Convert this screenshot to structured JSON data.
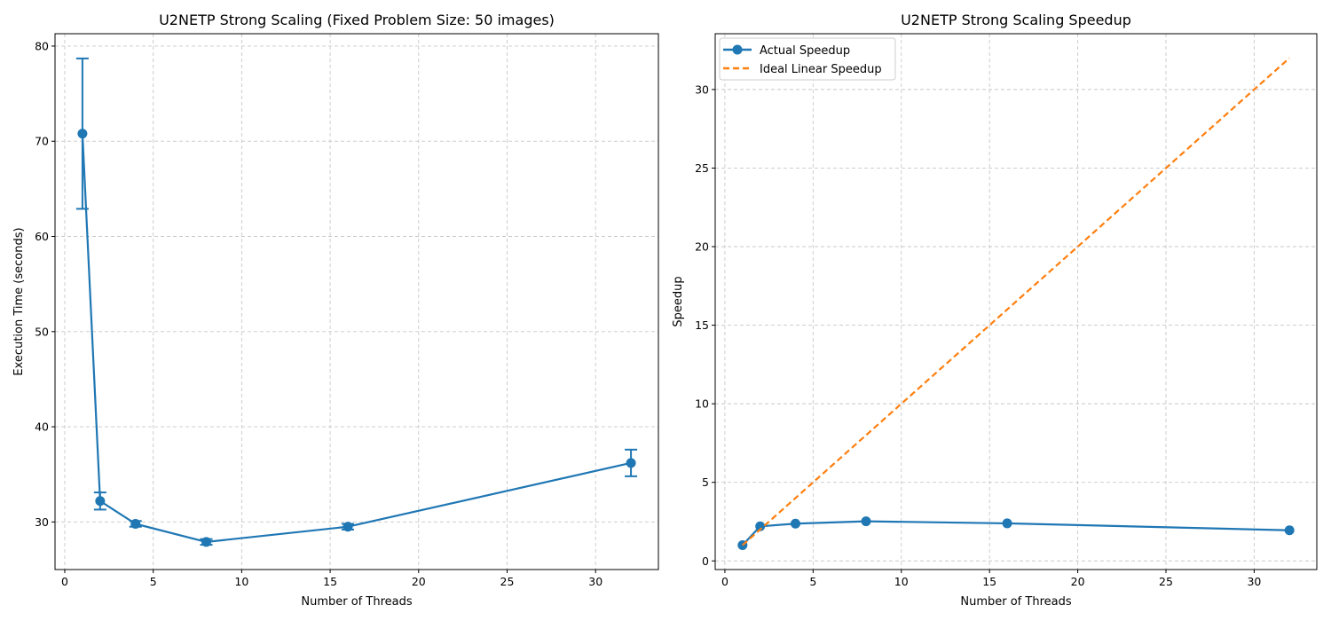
{
  "chart_data": [
    {
      "type": "line",
      "title": "U2NETP Strong Scaling (Fixed Problem Size: 50 images)",
      "xlabel": "Number of Threads",
      "ylabel": "Execution Time (seconds)",
      "xlim": [
        -0.55,
        33.55
      ],
      "ylim": [
        25,
        81.3
      ],
      "xticks": [
        0,
        5,
        10,
        15,
        20,
        25,
        30
      ],
      "yticks": [
        30,
        40,
        50,
        60,
        70,
        80
      ],
      "grid": true,
      "color": "#1f77b4",
      "series": [
        {
          "x": [
            1,
            2,
            4,
            8,
            16,
            32
          ],
          "y": [
            70.8,
            32.2,
            29.8,
            27.9,
            29.5,
            36.2
          ],
          "error": [
            7.9,
            0.9,
            0.3,
            0.3,
            0.3,
            1.4
          ]
        }
      ]
    },
    {
      "type": "line",
      "title": "U2NETP Strong Scaling Speedup",
      "xlabel": "Number of Threads",
      "ylabel": "Speedup",
      "xlim": [
        -0.55,
        33.55
      ],
      "ylim": [
        -0.55,
        33.55
      ],
      "xticks": [
        0,
        5,
        10,
        15,
        20,
        25,
        30
      ],
      "yticks": [
        0,
        5,
        10,
        15,
        20,
        25,
        30
      ],
      "grid": true,
      "legend_position": "top-left",
      "series": [
        {
          "name": "Actual Speedup",
          "style": "solid-markers",
          "color": "#1f77b4",
          "x": [
            1,
            2,
            4,
            8,
            16,
            32
          ],
          "y": [
            1.0,
            2.2,
            2.37,
            2.52,
            2.39,
            1.95
          ]
        },
        {
          "name": "Ideal Linear Speedup",
          "style": "dashed",
          "color": "#ff7f0e",
          "x": [
            1,
            32
          ],
          "y": [
            1,
            32
          ]
        }
      ]
    }
  ]
}
